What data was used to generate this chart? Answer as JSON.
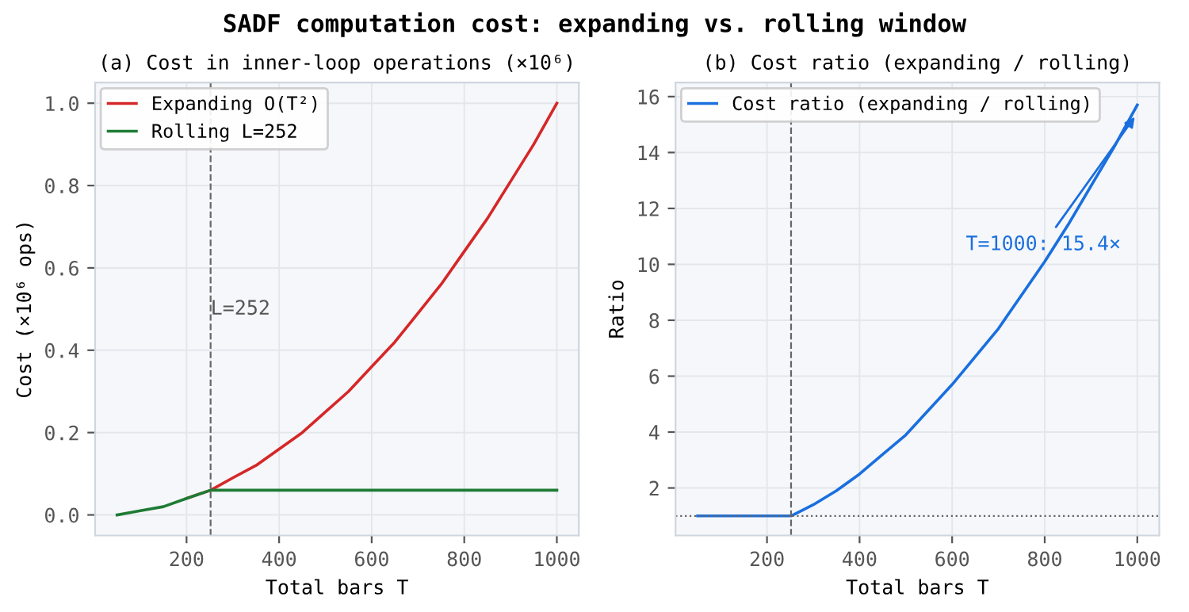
{
  "chart_data": [
    {
      "type": "line",
      "title": "SADF computation cost: expanding vs. rolling window",
      "subtitle": "(a) Cost in inner-loop operations (×10⁶)",
      "xlabel": "Total bars T",
      "ylabel": "Cost (×10⁶ ops)",
      "x": [
        50,
        100,
        150,
        200,
        252,
        300,
        350,
        400,
        450,
        500,
        550,
        600,
        650,
        700,
        750,
        800,
        850,
        900,
        950,
        1000
      ],
      "series": [
        {
          "name": "Expanding O(T²)",
          "color": "#d62728",
          "values": [
            null,
            null,
            null,
            0.04,
            0.06,
            0.09,
            0.12,
            0.16,
            0.2,
            0.25,
            0.3,
            0.36,
            0.42,
            0.49,
            0.56,
            0.64,
            0.72,
            0.81,
            0.9,
            1.0
          ]
        },
        {
          "name": "Rolling L=252",
          "color": "#1e7b34",
          "values": [
            0.0,
            0.01,
            0.02,
            0.04,
            0.06,
            0.06,
            0.06,
            0.06,
            0.06,
            0.06,
            0.06,
            0.06,
            0.06,
            0.06,
            0.06,
            0.06,
            0.06,
            0.06,
            0.06,
            0.06
          ]
        }
      ],
      "xlim": [
        2.5,
        1047.5
      ],
      "xticks": [
        200,
        400,
        600,
        800,
        1000
      ],
      "ylim": [
        -0.05,
        1.05
      ],
      "yticks": [
        {
          "value": 0,
          "label": "0.0"
        },
        {
          "value": 0.2,
          "label": "0.2"
        },
        {
          "value": 0.4,
          "label": "0.4"
        },
        {
          "value": 0.6,
          "label": "0.6"
        },
        {
          "value": 0.8,
          "label": "0.8"
        },
        {
          "value": 1,
          "label": "1.0"
        }
      ],
      "ref_lines": [
        {
          "axis": "x",
          "value": 252,
          "label": "L=252",
          "color": "#666666",
          "line_style": "dashed"
        }
      ],
      "grid": true,
      "legend": "top left"
    },
    {
      "type": "line",
      "subtitle": "(b) Cost ratio (expanding / rolling)",
      "xlabel": "Total bars T",
      "ylabel": "Ratio",
      "x": [
        50,
        100,
        150,
        200,
        252,
        300,
        350,
        400,
        450,
        500,
        550,
        600,
        650,
        700,
        750,
        800,
        850,
        900,
        950,
        1000
      ],
      "series": [
        {
          "name": "Cost ratio (expanding / rolling)",
          "color": "#1a6fdf",
          "values": [
            1.0,
            1.0,
            1.0,
            1.0,
            1.0,
            1.4,
            1.9,
            2.5,
            3.2,
            3.9,
            4.8,
            5.7,
            6.7,
            7.7,
            8.9,
            10.1,
            11.4,
            12.8,
            14.2,
            15.7
          ]
        }
      ],
      "xlim": [
        2.5,
        1047.5
      ],
      "xticks": [
        200,
        400,
        600,
        800,
        1000
      ],
      "ylim": [
        0.3,
        16.5
      ],
      "yticks": [
        2,
        4,
        6,
        8,
        10,
        12,
        14,
        16
      ],
      "ref_lines": [
        {
          "axis": "x",
          "value": 252,
          "color": "#666666",
          "line_style": "dashed"
        },
        {
          "axis": "y",
          "value": 1,
          "color": "#666666",
          "line_style": "dotted"
        }
      ],
      "annotations": [
        {
          "text": "T=1000: 15.4×",
          "x": 1000,
          "y": 15.4
        }
      ],
      "grid": true,
      "legend": "top left"
    }
  ]
}
